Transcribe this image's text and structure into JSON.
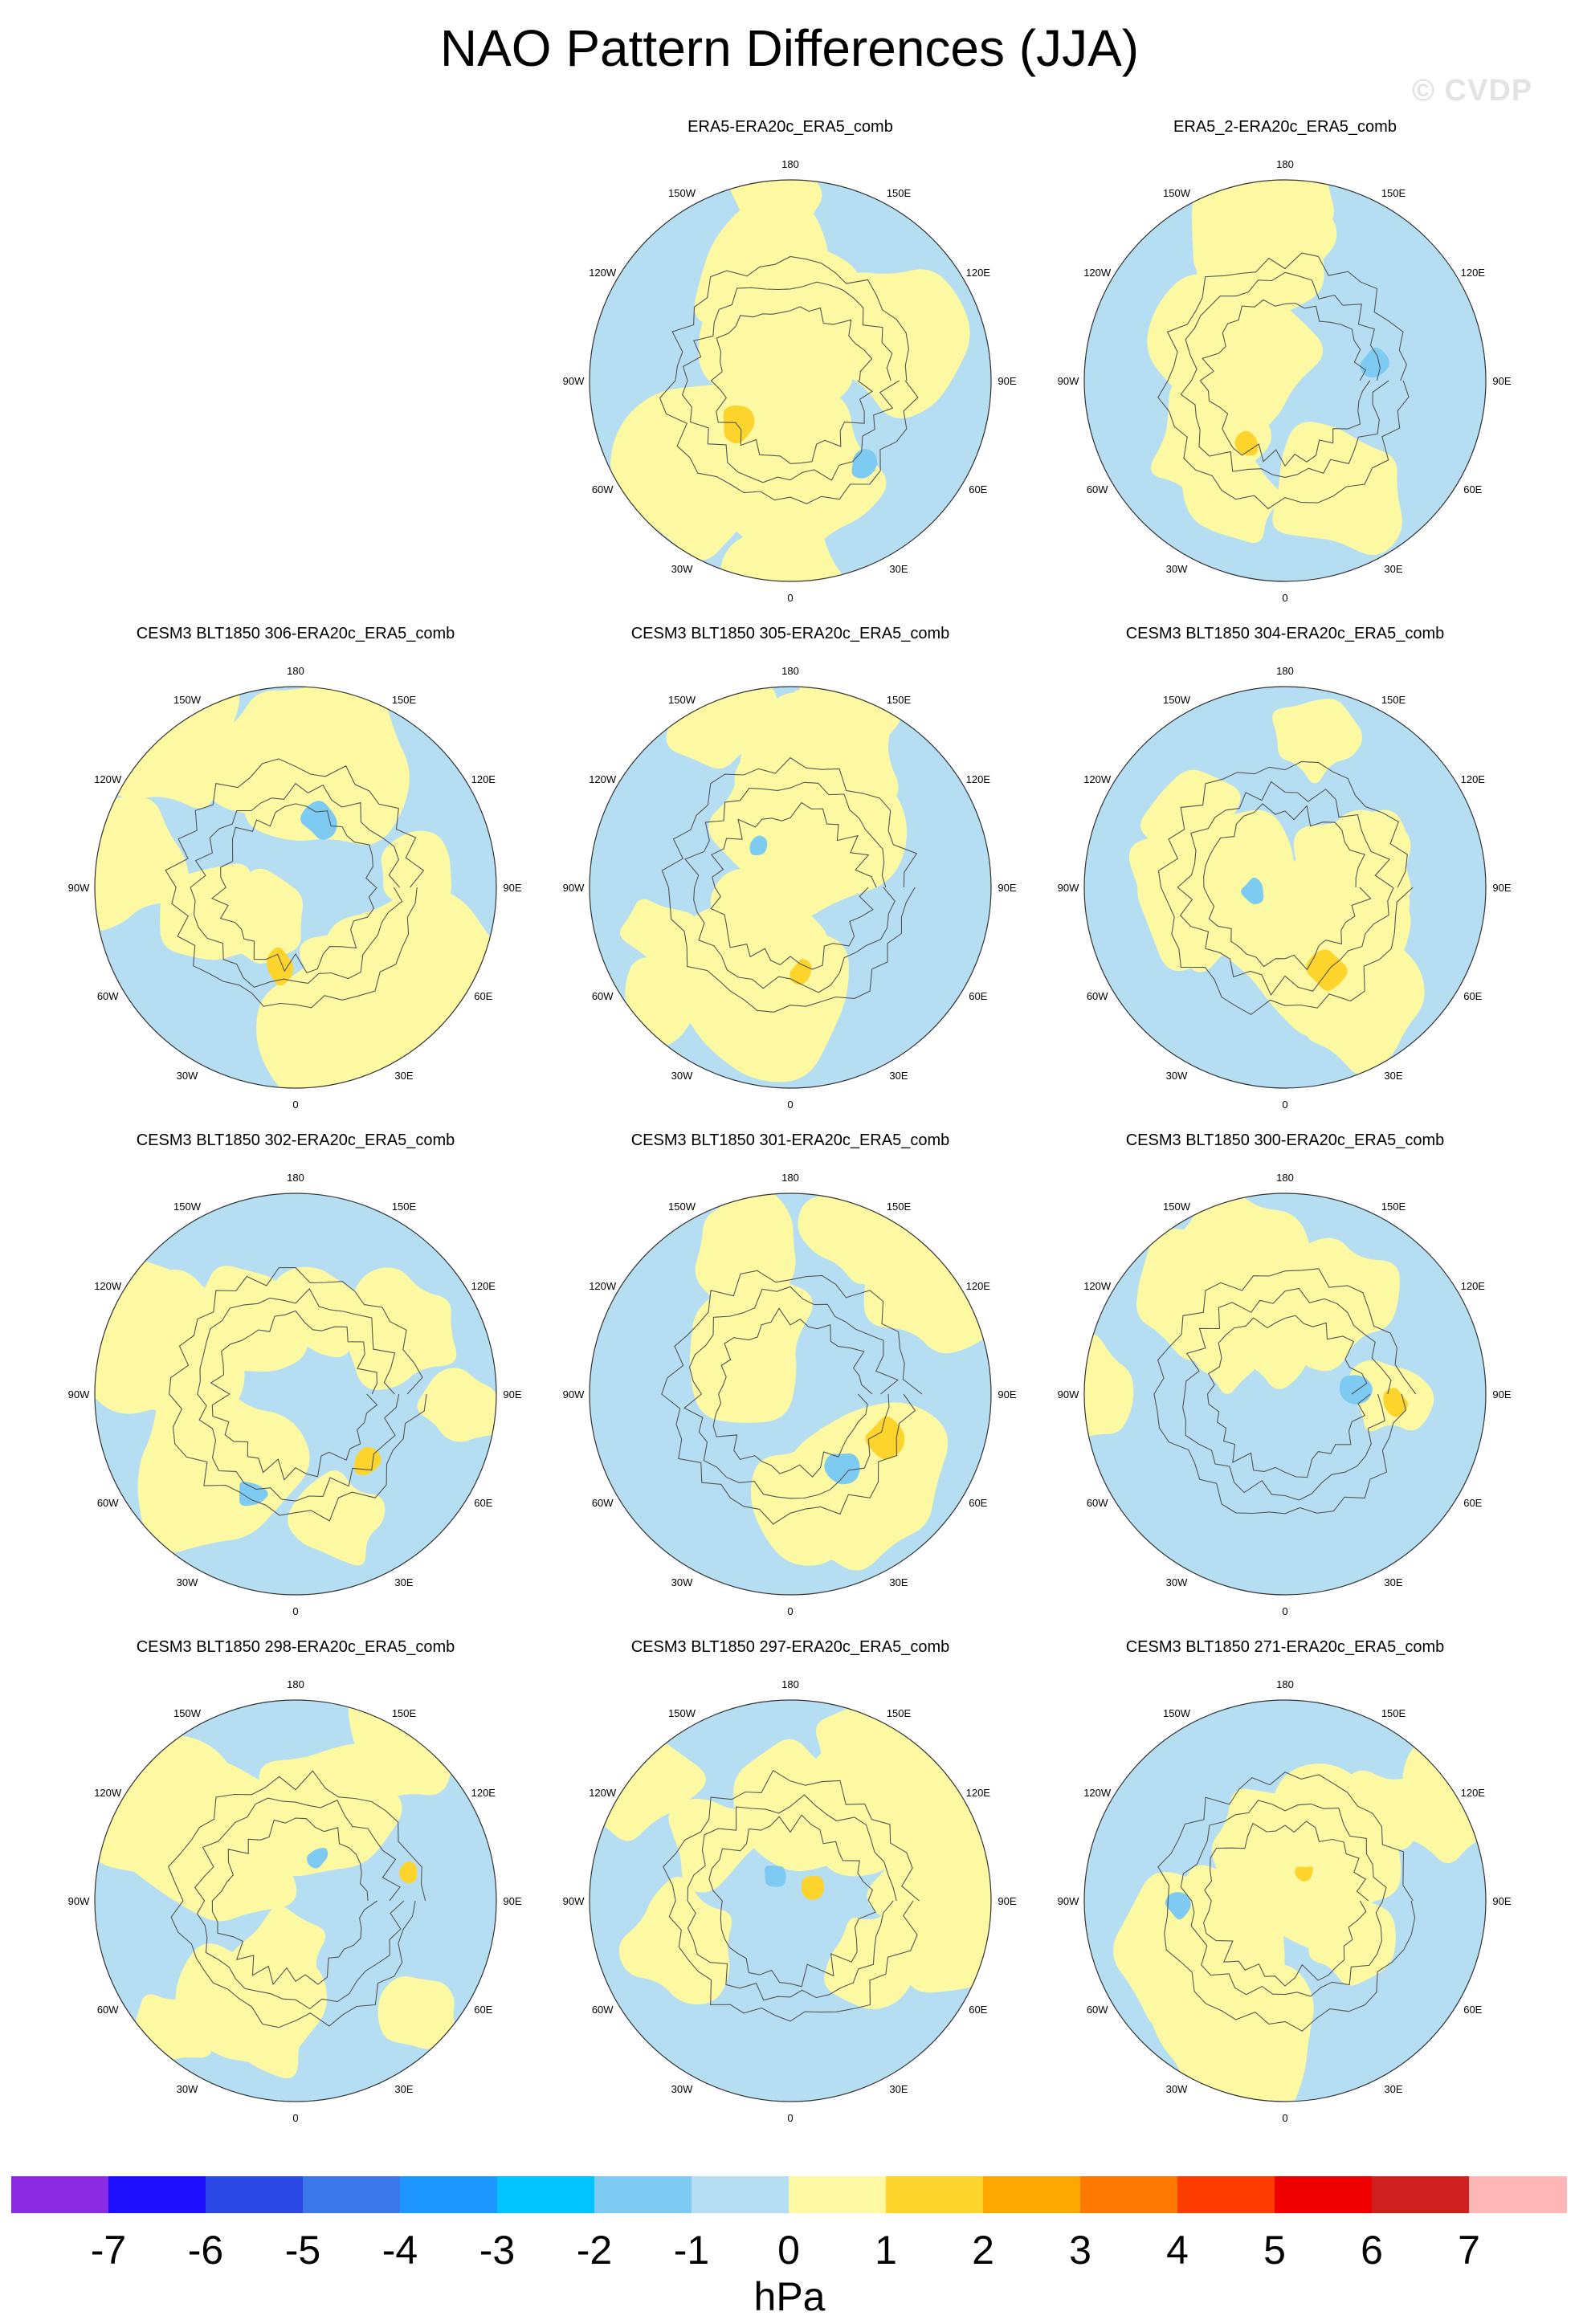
{
  "title": "NAO Pattern Differences (JJA)",
  "watermark": "© CVDP",
  "longitude_labels": [
    "180",
    "150E",
    "120E",
    "90E",
    "60E",
    "30E",
    "0",
    "30W",
    "60W",
    "90W",
    "120W",
    "150W"
  ],
  "panels": [
    {
      "title": "ERA5-ERA20c_ERA5_comb",
      "variant": 0
    },
    {
      "title": "ERA5_2-ERA20c_ERA5_comb",
      "variant": 1
    },
    {
      "title": "CESM3 BLT1850 306-ERA20c_ERA5_comb",
      "variant": 2
    },
    {
      "title": "CESM3 BLT1850 305-ERA20c_ERA5_comb",
      "variant": 3
    },
    {
      "title": "CESM3 BLT1850 304-ERA20c_ERA5_comb",
      "variant": 4
    },
    {
      "title": "CESM3 BLT1850 302-ERA20c_ERA5_comb",
      "variant": 5
    },
    {
      "title": "CESM3 BLT1850 301-ERA20c_ERA5_comb",
      "variant": 6
    },
    {
      "title": "CESM3 BLT1850 300-ERA20c_ERA5_comb",
      "variant": 7
    },
    {
      "title": "CESM3 BLT1850 298-ERA20c_ERA5_comb",
      "variant": 8
    },
    {
      "title": "CESM3 BLT1850 297-ERA20c_ERA5_comb",
      "variant": 9
    },
    {
      "title": "CESM3 BLT1850 271-ERA20c_ERA5_comb",
      "variant": 10
    }
  ],
  "colorbar": {
    "unit": "hPa",
    "ticks": [
      "-7",
      "-6",
      "-5",
      "-4",
      "-3",
      "-2",
      "-1",
      "0",
      "1",
      "2",
      "3",
      "4",
      "5",
      "6",
      "7"
    ],
    "colors": [
      "#8a2be2",
      "#1e10ff",
      "#2b48e6",
      "#3a78ea",
      "#1e96ff",
      "#00c4ff",
      "#7dcaf3",
      "#b6def3",
      "#fdf9a3",
      "#fdd42b",
      "#fda800",
      "#fd7800",
      "#fd3c00",
      "#ef0000",
      "#d01f1f",
      "#ffb6b6"
    ]
  },
  "field_colors": {
    "neg2": "#7dcaf3",
    "neg1": "#b6def3",
    "pos1": "#fdf9a3",
    "pos2": "#fdd42b"
  }
}
